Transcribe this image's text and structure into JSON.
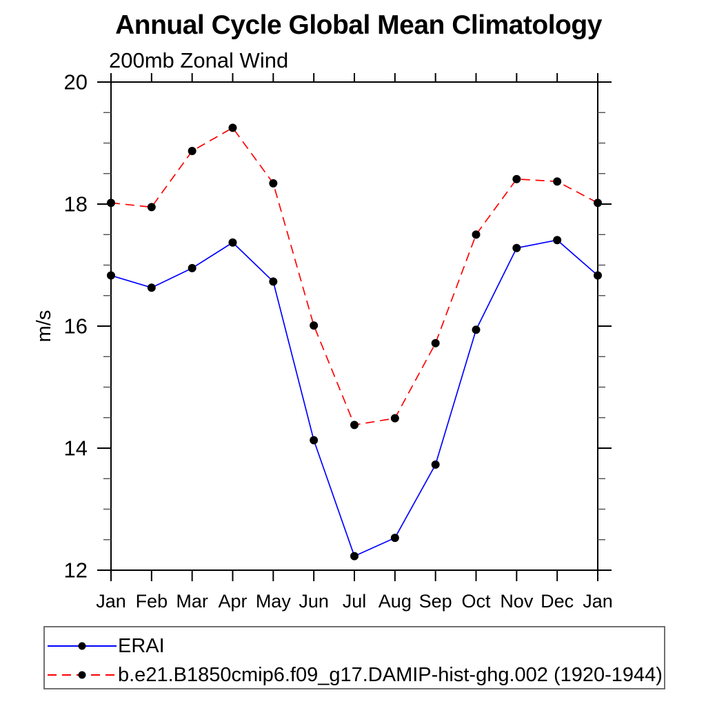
{
  "header": {
    "title": "Annual Cycle Global Mean Climatology",
    "subtitle": "200mb Zonal Wind"
  },
  "chart_data": {
    "type": "line",
    "title": "Annual Cycle Global Mean Climatology",
    "subtitle": "200mb Zonal Wind",
    "xlabel": "",
    "ylabel": "m/s",
    "ylim": [
      12,
      20
    ],
    "yticks": [
      12,
      14,
      16,
      18,
      20
    ],
    "minor_tick_step": 0.5,
    "grid": false,
    "legend_position": "bottom-left-box",
    "categories": [
      "Jan",
      "Feb",
      "Mar",
      "Apr",
      "May",
      "Jun",
      "Jul",
      "Aug",
      "Sep",
      "Oct",
      "Nov",
      "Dec",
      "Jan"
    ],
    "series": [
      {
        "name": "ERAI",
        "color": "#0000ff",
        "line_style": "solid",
        "marker": "filled-circle",
        "marker_color": "#000000",
        "values": [
          16.83,
          16.63,
          16.95,
          17.37,
          16.73,
          14.13,
          12.23,
          12.53,
          13.73,
          15.94,
          17.28,
          17.41,
          16.83
        ]
      },
      {
        "name": "b.e21.B1850cmip6.f09_g17.DAMIP-hist-ghg.002 (1920-1944)",
        "color": "#ff0000",
        "line_style": "dashed",
        "marker": "filled-circle",
        "marker_color": "#000000",
        "values": [
          18.02,
          17.95,
          18.87,
          19.25,
          18.34,
          16.01,
          14.38,
          14.49,
          15.72,
          17.5,
          18.41,
          18.37,
          18.02
        ]
      }
    ]
  },
  "legend": {
    "entries": [
      {
        "label": "ERAI",
        "color": "#0000ff",
        "line_style": "solid"
      },
      {
        "label": "b.e21.B1850cmip6.f09_g17.DAMIP-hist-ghg.002 (1920-1944)",
        "color": "#ff0000",
        "line_style": "dashed"
      }
    ]
  }
}
